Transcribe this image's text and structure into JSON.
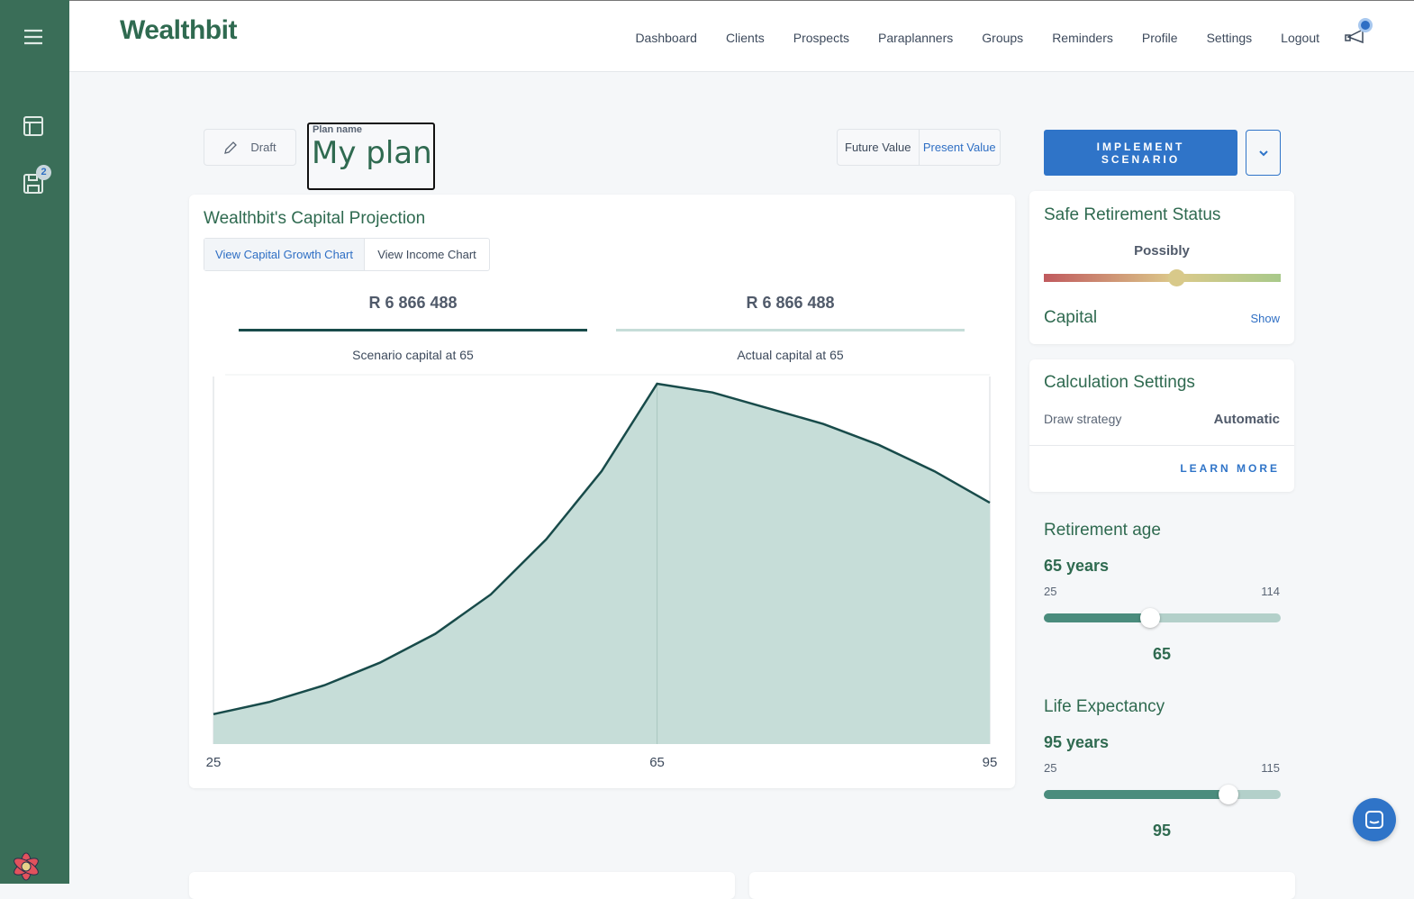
{
  "app": {
    "logo": "Wealthbit",
    "sidebar_badge": "2"
  },
  "nav": [
    "Dashboard",
    "Clients",
    "Prospects",
    "Paraplanners",
    "Groups",
    "Reminders",
    "Profile",
    "Settings",
    "Logout"
  ],
  "plan": {
    "status": "Draft",
    "name_label": "Plan name",
    "name": "My plan"
  },
  "value_toggle": {
    "options": [
      "Future Value",
      "Present Value"
    ],
    "selected": "Present Value"
  },
  "implement": {
    "label_line1": "IMPLEMENT",
    "label_line2": "SCENARIO"
  },
  "projection": {
    "title": "Wealthbit's Capital Projection",
    "tabs": [
      "View Capital Growth Chart",
      "View Income Chart"
    ],
    "active_tab": "View Capital Growth Chart",
    "scenario_value": "R 6 866 488",
    "scenario_label": "Scenario capital at 65",
    "actual_value": "R 6 866 488",
    "actual_label": "Actual capital at 65"
  },
  "chart_data": {
    "type": "area",
    "x": [
      25,
      30,
      35,
      40,
      45,
      50,
      55,
      60,
      65,
      70,
      75,
      80,
      85,
      90,
      95
    ],
    "values": [
      570000,
      800000,
      1120000,
      1550000,
      2100000,
      2850000,
      3900000,
      5200000,
      6866488,
      6700000,
      6400000,
      6100000,
      5700000,
      5200000,
      4600000
    ],
    "xticks": [
      "25",
      "65",
      "95"
    ],
    "xlim": [
      25,
      95
    ],
    "ylim": [
      0,
      6866488
    ],
    "grid": false,
    "line_color": "#184b4a",
    "fill_color": "#c6ddd8"
  },
  "safe_status": {
    "title": "Safe Retirement Status",
    "status": "Possibly",
    "level_percent": 56,
    "capital_label": "Capital",
    "show_label": "Show"
  },
  "calc": {
    "title": "Calculation Settings",
    "draw_label": "Draw strategy",
    "draw_value": "Automatic",
    "learn_more": "LEARN MORE"
  },
  "retirement": {
    "title": "Retirement age",
    "value_text": "65 years",
    "min": "25",
    "max": "114",
    "value": 65,
    "value_label": "65"
  },
  "life": {
    "title": "Life Expectancy",
    "value_text": "95 years",
    "min": "25",
    "max": "115",
    "value": 95,
    "value_label": "95"
  }
}
